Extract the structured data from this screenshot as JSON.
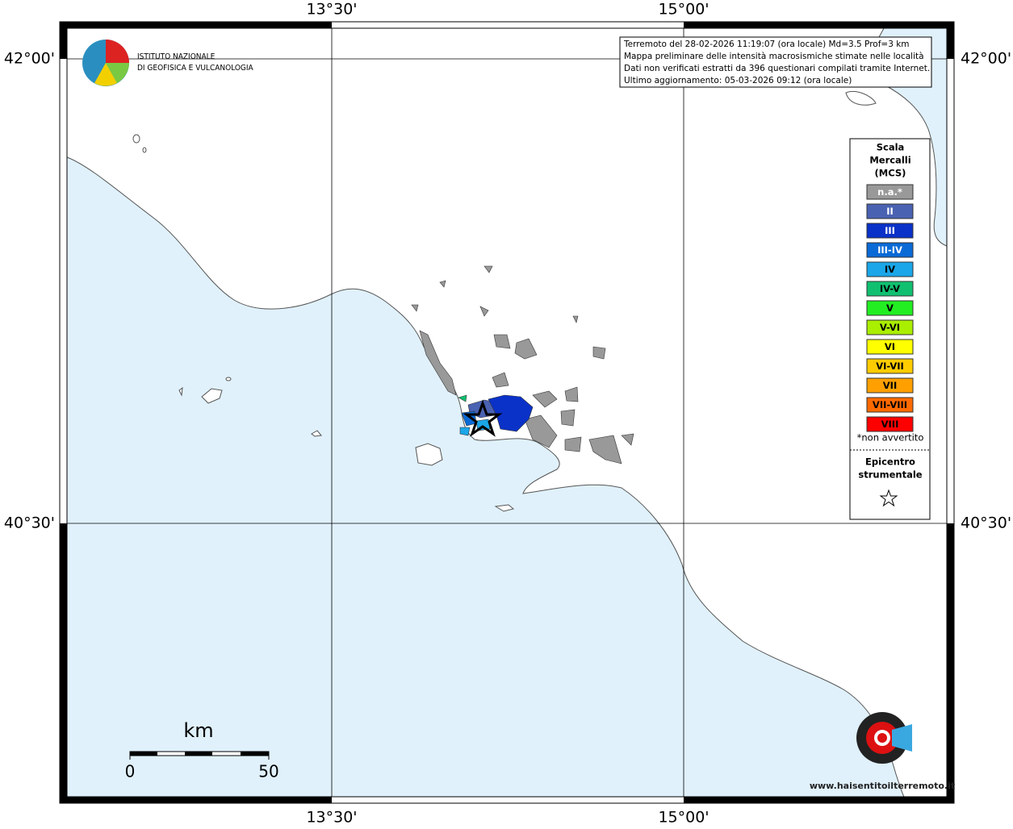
{
  "header": {
    "logo_lines": [
      "ISTITUTO NAZIONALE",
      "DI GEOFISICA E VULCANOLOGIA"
    ]
  },
  "info_box": {
    "lines": [
      "Terremoto del 28-02-2026 11:19:07 (ora locale) Md=3.5 Prof=3 km",
      "Mappa preliminare delle intensità macrosismiche stimate nelle località",
      "Dati non verificati estratti da 396 questionari compilati tramite Internet.",
      "Ultimo aggiornamento: 05-03-2026 09:12 (ora locale)"
    ]
  },
  "axes": {
    "lon_labels": [
      "13°30'",
      "15°00'"
    ],
    "lat_labels": [
      "42°00'",
      "40°30'"
    ]
  },
  "legend": {
    "title": [
      "Scala",
      "Mercalli",
      "(MCS)"
    ],
    "items": [
      {
        "label": "n.a.*",
        "color": "#999999"
      },
      {
        "label": "II",
        "color": "#4a62b2"
      },
      {
        "label": "III",
        "color": "#0a32c8"
      },
      {
        "label": "III-IV",
        "color": "#0a6ad6"
      },
      {
        "label": "IV",
        "color": "#1aa6e8"
      },
      {
        "label": "IV-V",
        "color": "#10c070"
      },
      {
        "label": "V",
        "color": "#22ee22"
      },
      {
        "label": "V-VI",
        "color": "#aaee00"
      },
      {
        "label": "VI",
        "color": "#ffff00"
      },
      {
        "label": "VI-VII",
        "color": "#ffcc00"
      },
      {
        "label": "VII",
        "color": "#ffa000"
      },
      {
        "label": "VII-VIII",
        "color": "#ff6a00"
      },
      {
        "label": "VIII",
        "color": "#ff0000"
      }
    ],
    "note": "*non avvertito",
    "epicenter": [
      "Epicentro",
      "strumentale"
    ]
  },
  "scale_bar": {
    "unit": "km",
    "start": "0",
    "end": "50"
  },
  "badge": "www.haisentitoilterremoto.it"
}
